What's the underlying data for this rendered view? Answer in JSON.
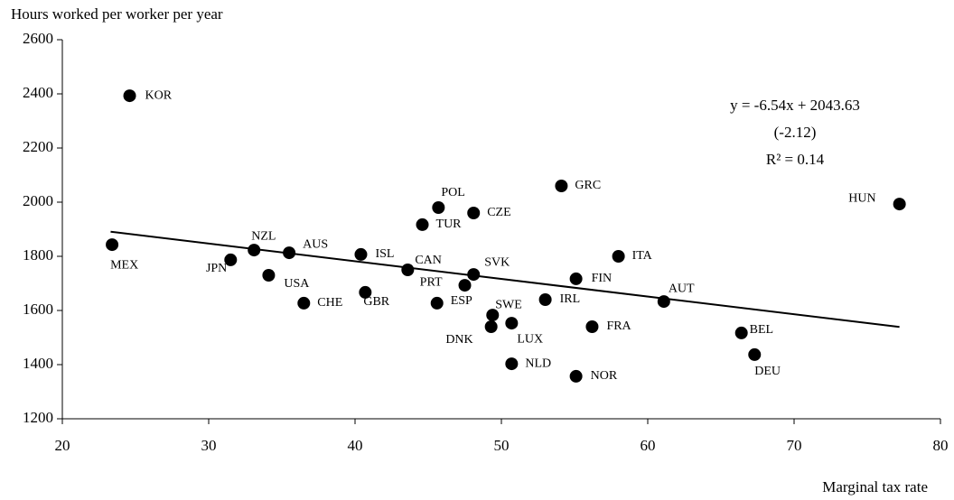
{
  "chart_data": {
    "type": "scatter",
    "y_axis_label": "Hours worked per worker per year",
    "x_axis_label": "Marginal tax rate",
    "annotations": [
      "y = -6.54x + 2043.63",
      "(-2.12)",
      "R² = 0.14"
    ],
    "labels": [
      "KOR",
      "MEX",
      "NZL",
      "AUS",
      "JPN",
      "USA",
      "CHE",
      "GBR",
      "ISL",
      "CAN",
      "TUR",
      "POL",
      "CZE",
      "SVK",
      "PRT",
      "ESP",
      "SWE",
      "DNK",
      "LUX",
      "NLD",
      "GRC",
      "IRL",
      "FIN",
      "ITA",
      "FRA",
      "NOR",
      "AUT",
      "BEL",
      "DEU",
      "HUN"
    ],
    "x": [
      24.6,
      23.4,
      33.1,
      35.5,
      31.5,
      34.1,
      36.5,
      40.7,
      40.4,
      43.6,
      44.6,
      45.7,
      48.1,
      48.1,
      47.5,
      45.6,
      49.4,
      49.3,
      50.7,
      50.7,
      54.1,
      53.0,
      55.1,
      58.0,
      56.2,
      55.1,
      61.1,
      66.4,
      67.3,
      77.2
    ],
    "values": [
      2393,
      1843,
      1823,
      1813,
      1787,
      1730,
      1627,
      1667,
      1807,
      1750,
      1917,
      1980,
      1960,
      1733,
      1693,
      1627,
      1583,
      1540,
      1553,
      1403,
      2060,
      1640,
      1717,
      1800,
      1540,
      1357,
      1633,
      1517,
      1437,
      1993
    ],
    "color": "#000000",
    "fit_line": {
      "x": [
        23.3,
        77.2
      ],
      "y": [
        1891,
        1539
      ]
    },
    "xlim": [
      20,
      80
    ],
    "xticks": [
      20,
      30,
      40,
      50,
      60,
      70,
      80
    ],
    "ylim": [
      1200,
      2600
    ],
    "yticks": [
      1200,
      1400,
      1600,
      1800,
      2000,
      2200,
      2400,
      2600
    ],
    "grid": false
  }
}
